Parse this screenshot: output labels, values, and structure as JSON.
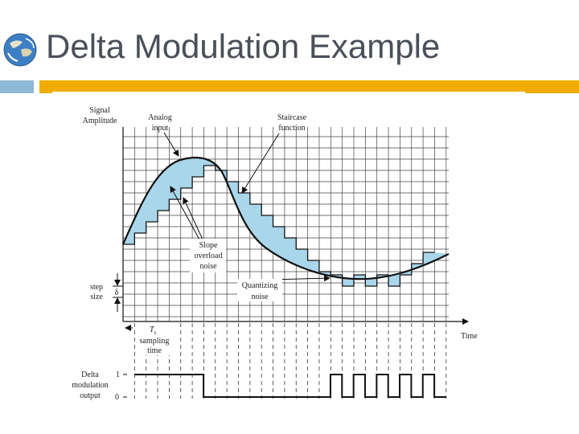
{
  "title": "Delta Modulation Example",
  "colors": {
    "title": "#4a4f59",
    "accent_bar": "#f0ac00",
    "side_bar": "#8fb7d6",
    "fill": "#a9d6ea"
  },
  "figure": {
    "y_axis_label": [
      "Signal",
      "Amplitude"
    ],
    "analog_label": [
      "Analog",
      "input"
    ],
    "staircase_label": [
      "Staircase",
      "function"
    ],
    "slope_label": [
      "Slope",
      "overload",
      "noise"
    ],
    "quant_label": [
      "Quantizing",
      "noise"
    ],
    "step_label": [
      "step",
      "size"
    ],
    "delta_symbol": "δ",
    "ts_symbol": "T",
    "ts_sub": "s",
    "sampling_label": [
      "sampling",
      "time"
    ],
    "time_label": "Time",
    "output_label": [
      "Delta",
      "modulation",
      "output"
    ],
    "one_label": "1",
    "zero_label": "0",
    "bits": [
      1,
      1,
      1,
      1,
      1,
      1,
      0,
      0,
      0,
      0,
      0,
      0,
      0,
      0,
      0,
      0,
      0,
      1,
      0,
      1,
      0,
      1,
      0,
      1,
      0,
      1,
      0
    ]
  }
}
